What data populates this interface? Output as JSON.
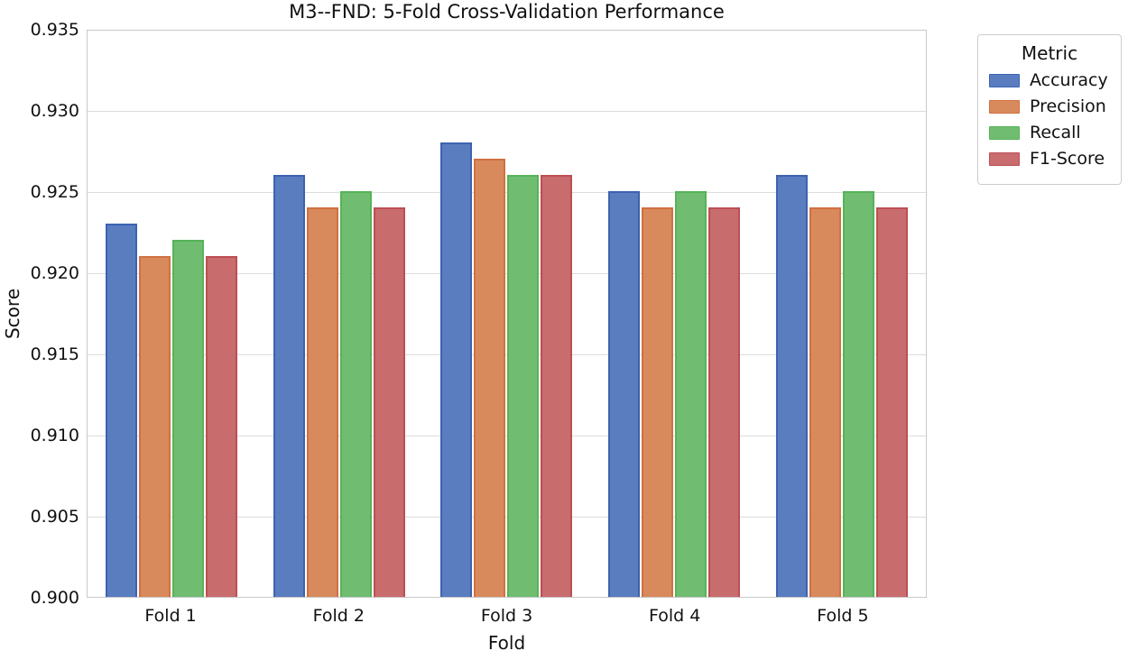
{
  "chart_data": {
    "type": "bar",
    "title": "M3--FND: 5-Fold Cross-Validation Performance",
    "xlabel": "Fold",
    "ylabel": "Score",
    "categories": [
      "Fold 1",
      "Fold 2",
      "Fold 3",
      "Fold 4",
      "Fold 5"
    ],
    "series": [
      {
        "name": "Accuracy",
        "fill": "#5a7dc0",
        "edge": "#3c63b0",
        "values": [
          0.923,
          0.926,
          0.928,
          0.925,
          0.926
        ]
      },
      {
        "name": "Precision",
        "fill": "#d98a5c",
        "edge": "#cf7141",
        "values": [
          0.921,
          0.924,
          0.927,
          0.924,
          0.924
        ]
      },
      {
        "name": "Recall",
        "fill": "#70bd72",
        "edge": "#57b358",
        "values": [
          0.922,
          0.925,
          0.926,
          0.925,
          0.925
        ]
      },
      {
        "name": "F1-Score",
        "fill": "#c86c6e",
        "edge": "#bd4e54",
        "values": [
          0.921,
          0.924,
          0.926,
          0.924,
          0.924
        ]
      }
    ],
    "ylim": [
      0.9,
      0.935
    ],
    "ytick_step": 0.005,
    "yticks": [
      "0.935",
      "0.930",
      "0.925",
      "0.920",
      "0.915",
      "0.910",
      "0.905",
      "0.900"
    ],
    "legend_title": "Metric",
    "legend_position": "outside upper right",
    "grid": true,
    "colors": {
      "grid": "#dcdcdc",
      "spine": "#c9c9c9",
      "text": "#111111",
      "background": "#ffffff"
    }
  }
}
